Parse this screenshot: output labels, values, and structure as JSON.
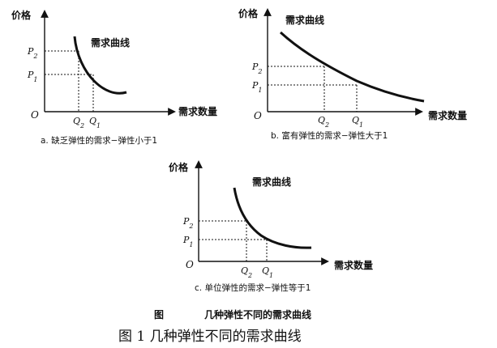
{
  "panels": [
    {
      "y_axis_label": "价格",
      "x_axis_label": "需求数量",
      "curve_label": "需求曲线",
      "origin_label": "O",
      "p_labels": [
        "P",
        "P"
      ],
      "p_subs": [
        "2",
        "1"
      ],
      "q_labels": [
        "Q",
        "Q"
      ],
      "q_subs": [
        "2",
        "1"
      ],
      "caption": "a. 缺乏弹性的需求−弹性小于1"
    },
    {
      "y_axis_label": "价格",
      "x_axis_label": "需求数量",
      "curve_label": "需求曲线",
      "origin_label": "O",
      "p_labels": [
        "P",
        "P"
      ],
      "p_subs": [
        "2",
        "1"
      ],
      "q_labels": [
        "Q",
        "Q"
      ],
      "q_subs": [
        "2",
        "1"
      ],
      "caption": "b. 富有弹性的需求−弹性大于1"
    },
    {
      "y_axis_label": "价格",
      "x_axis_label": "需求数量",
      "curve_label": "需求曲线",
      "origin_label": "O",
      "p_labels": [
        "P",
        "P"
      ],
      "p_subs": [
        "2",
        "1"
      ],
      "q_labels": [
        "Q",
        "Q"
      ],
      "q_subs": [
        "2",
        "1"
      ],
      "caption": "c. 单位弹性的需求−弹性等于1"
    }
  ],
  "figure_label": "图",
  "figure_subtitle": "几种弹性不同的需求曲线",
  "main_title": "图 1 几种弹性不同的需求曲线"
}
